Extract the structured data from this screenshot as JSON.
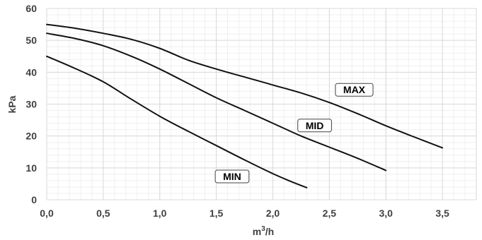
{
  "chart_data": {
    "type": "line",
    "xlabel_base": "m",
    "xlabel_sup": "3",
    "xlabel_tail": "/h",
    "ylabel": "kPa",
    "xlim": [
      0,
      3.8
    ],
    "ylim": [
      0,
      60
    ],
    "x_ticks": [
      {
        "value": 0,
        "label": "0,0"
      },
      {
        "value": 0.5,
        "label": "0,5"
      },
      {
        "value": 1.0,
        "label": "1,0"
      },
      {
        "value": 1.5,
        "label": "1,5"
      },
      {
        "value": 2.0,
        "label": "2,0"
      },
      {
        "value": 2.5,
        "label": "2,5"
      },
      {
        "value": 3.0,
        "label": "3,0"
      },
      {
        "value": 3.5,
        "label": "3,5"
      }
    ],
    "y_ticks": [
      {
        "value": 0,
        "label": "0"
      },
      {
        "value": 10,
        "label": "10"
      },
      {
        "value": 20,
        "label": "20"
      },
      {
        "value": 30,
        "label": "30"
      },
      {
        "value": 40,
        "label": "40"
      },
      {
        "value": 50,
        "label": "50"
      },
      {
        "value": 60,
        "label": "60"
      }
    ],
    "grid": true,
    "series": [
      {
        "name": "MAX",
        "label_anchor": [
          2.72,
          34.5
        ],
        "points": [
          [
            0,
            55
          ],
          [
            0.25,
            53.8
          ],
          [
            0.5,
            52.2
          ],
          [
            0.75,
            50.3
          ],
          [
            1.0,
            47.5
          ],
          [
            1.25,
            43.8
          ],
          [
            1.5,
            41
          ],
          [
            1.75,
            38.5
          ],
          [
            2.0,
            36
          ],
          [
            2.25,
            33.5
          ],
          [
            2.5,
            30.5
          ],
          [
            2.75,
            27
          ],
          [
            3.0,
            23.2
          ],
          [
            3.25,
            19.7
          ],
          [
            3.5,
            16.3
          ]
        ]
      },
      {
        "name": "MID",
        "label_anchor": [
          2.37,
          23.3
        ],
        "points": [
          [
            0,
            52.2
          ],
          [
            0.25,
            50.6
          ],
          [
            0.5,
            48.3
          ],
          [
            0.75,
            45
          ],
          [
            1.0,
            41
          ],
          [
            1.25,
            36.5
          ],
          [
            1.5,
            32
          ],
          [
            1.75,
            28
          ],
          [
            2.0,
            24
          ],
          [
            2.25,
            20
          ],
          [
            2.5,
            16.5
          ],
          [
            2.75,
            13
          ],
          [
            3.0,
            9.2
          ]
        ]
      },
      {
        "name": "MIN",
        "label_anchor": [
          1.64,
          7.3
        ],
        "points": [
          [
            0,
            45
          ],
          [
            0.25,
            41.2
          ],
          [
            0.5,
            37
          ],
          [
            0.75,
            31.5
          ],
          [
            1.0,
            26.2
          ],
          [
            1.25,
            21.5
          ],
          [
            1.5,
            17
          ],
          [
            1.75,
            12.5
          ],
          [
            2.0,
            8.2
          ],
          [
            2.15,
            5.9
          ],
          [
            2.3,
            3.8
          ]
        ]
      }
    ]
  }
}
